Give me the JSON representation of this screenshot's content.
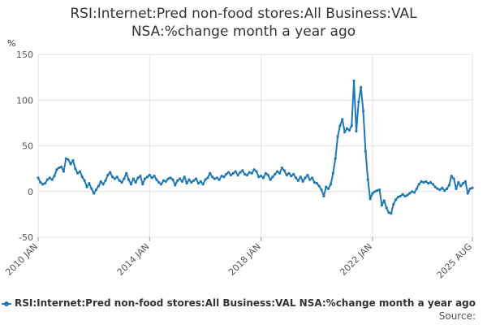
{
  "chart_data": {
    "type": "line",
    "title_line1": "RSI:Internet:Pred non-food stores:All Business:VAL",
    "title_line2": "NSA:%change month a year ago",
    "ylabel": "%",
    "ylim": [
      -50,
      150
    ],
    "yticks": [
      -50,
      0,
      50,
      100,
      150
    ],
    "xticks": [
      {
        "label": "2010 JAN",
        "t": 2010.0
      },
      {
        "label": "2014 JAN",
        "t": 2014.0
      },
      {
        "label": "2018 JAN",
        "t": 2018.0
      },
      {
        "label": "2022 JAN",
        "t": 2022.0
      },
      {
        "label": "2025 AUG",
        "t": 2025.583
      }
    ],
    "xlim": [
      2010.0,
      2025.583
    ],
    "grid": true,
    "legend_position": "bottom",
    "series": [
      {
        "name": "RSI:Internet:Pred non-food stores:All Business:VAL NSA:%change month a year ago",
        "color": "#1f78b4",
        "points": [
          [
            2010.0,
            15
          ],
          [
            2010.083,
            10
          ],
          [
            2010.167,
            8
          ],
          [
            2010.25,
            9
          ],
          [
            2010.333,
            13
          ],
          [
            2010.417,
            15
          ],
          [
            2010.5,
            13
          ],
          [
            2010.583,
            17
          ],
          [
            2010.667,
            24
          ],
          [
            2010.75,
            26
          ],
          [
            2010.833,
            27
          ],
          [
            2010.917,
            22
          ],
          [
            2011.0,
            36
          ],
          [
            2011.083,
            35
          ],
          [
            2011.167,
            30
          ],
          [
            2011.25,
            34
          ],
          [
            2011.333,
            25
          ],
          [
            2011.417,
            20
          ],
          [
            2011.5,
            22
          ],
          [
            2011.583,
            16
          ],
          [
            2011.667,
            12
          ],
          [
            2011.75,
            5
          ],
          [
            2011.833,
            9
          ],
          [
            2011.917,
            3
          ],
          [
            2012.0,
            -2
          ],
          [
            2012.083,
            2
          ],
          [
            2012.167,
            6
          ],
          [
            2012.25,
            11
          ],
          [
            2012.333,
            8
          ],
          [
            2012.417,
            12
          ],
          [
            2012.5,
            18
          ],
          [
            2012.583,
            21
          ],
          [
            2012.667,
            16
          ],
          [
            2012.75,
            14
          ],
          [
            2012.833,
            16
          ],
          [
            2012.917,
            12
          ],
          [
            2013.0,
            10
          ],
          [
            2013.083,
            14
          ],
          [
            2013.167,
            20
          ],
          [
            2013.25,
            13
          ],
          [
            2013.333,
            8
          ],
          [
            2013.417,
            14
          ],
          [
            2013.5,
            10
          ],
          [
            2013.583,
            15
          ],
          [
            2013.667,
            17
          ],
          [
            2013.75,
            8
          ],
          [
            2013.833,
            14
          ],
          [
            2013.917,
            16
          ],
          [
            2014.0,
            18
          ],
          [
            2014.083,
            15
          ],
          [
            2014.167,
            17
          ],
          [
            2014.25,
            13
          ],
          [
            2014.333,
            10
          ],
          [
            2014.417,
            8
          ],
          [
            2014.5,
            12
          ],
          [
            2014.583,
            11
          ],
          [
            2014.667,
            14
          ],
          [
            2014.75,
            15
          ],
          [
            2014.833,
            13
          ],
          [
            2014.917,
            7
          ],
          [
            2015.0,
            12
          ],
          [
            2015.083,
            14
          ],
          [
            2015.167,
            11
          ],
          [
            2015.25,
            16
          ],
          [
            2015.333,
            9
          ],
          [
            2015.417,
            13
          ],
          [
            2015.5,
            10
          ],
          [
            2015.583,
            12
          ],
          [
            2015.667,
            14
          ],
          [
            2015.75,
            9
          ],
          [
            2015.833,
            11
          ],
          [
            2015.917,
            8
          ],
          [
            2016.0,
            13
          ],
          [
            2016.083,
            15
          ],
          [
            2016.167,
            20
          ],
          [
            2016.25,
            16
          ],
          [
            2016.333,
            14
          ],
          [
            2016.417,
            15
          ],
          [
            2016.5,
            13
          ],
          [
            2016.583,
            17
          ],
          [
            2016.667,
            16
          ],
          [
            2016.75,
            19
          ],
          [
            2016.833,
            21
          ],
          [
            2016.917,
            18
          ],
          [
            2017.0,
            20
          ],
          [
            2017.083,
            22
          ],
          [
            2017.167,
            18
          ],
          [
            2017.25,
            21
          ],
          [
            2017.333,
            23
          ],
          [
            2017.417,
            19
          ],
          [
            2017.5,
            18
          ],
          [
            2017.583,
            21
          ],
          [
            2017.667,
            20
          ],
          [
            2017.75,
            24
          ],
          [
            2017.833,
            22
          ],
          [
            2017.917,
            16
          ],
          [
            2018.0,
            17
          ],
          [
            2018.083,
            15
          ],
          [
            2018.167,
            20
          ],
          [
            2018.25,
            18
          ],
          [
            2018.333,
            13
          ],
          [
            2018.417,
            16
          ],
          [
            2018.5,
            19
          ],
          [
            2018.583,
            22
          ],
          [
            2018.667,
            20
          ],
          [
            2018.75,
            26
          ],
          [
            2018.833,
            23
          ],
          [
            2018.917,
            18
          ],
          [
            2019.0,
            20
          ],
          [
            2019.083,
            17
          ],
          [
            2019.167,
            19
          ],
          [
            2019.25,
            15
          ],
          [
            2019.333,
            12
          ],
          [
            2019.417,
            16
          ],
          [
            2019.5,
            11
          ],
          [
            2019.583,
            15
          ],
          [
            2019.667,
            18
          ],
          [
            2019.75,
            13
          ],
          [
            2019.833,
            15
          ],
          [
            2019.917,
            10
          ],
          [
            2020.0,
            9
          ],
          [
            2020.083,
            6
          ],
          [
            2020.167,
            2
          ],
          [
            2020.25,
            -5
          ],
          [
            2020.333,
            5
          ],
          [
            2020.417,
            3
          ],
          [
            2020.5,
            8
          ],
          [
            2020.583,
            20
          ],
          [
            2020.667,
            36
          ],
          [
            2020.75,
            60
          ],
          [
            2020.833,
            72
          ],
          [
            2020.917,
            79
          ],
          [
            2021.0,
            65
          ],
          [
            2021.083,
            69
          ],
          [
            2021.167,
            67
          ],
          [
            2021.25,
            72
          ],
          [
            2021.333,
            121
          ],
          [
            2021.417,
            66
          ],
          [
            2021.5,
            98
          ],
          [
            2021.583,
            114
          ],
          [
            2021.667,
            88
          ],
          [
            2021.75,
            44
          ],
          [
            2021.833,
            13
          ],
          [
            2021.917,
            -8
          ],
          [
            2022.0,
            -2
          ],
          [
            2022.083,
            0
          ],
          [
            2022.167,
            1
          ],
          [
            2022.25,
            2
          ],
          [
            2022.333,
            -15
          ],
          [
            2022.417,
            -10
          ],
          [
            2022.5,
            -18
          ],
          [
            2022.583,
            -23
          ],
          [
            2022.667,
            -24
          ],
          [
            2022.75,
            -14
          ],
          [
            2022.833,
            -9
          ],
          [
            2022.917,
            -6
          ],
          [
            2023.0,
            -5
          ],
          [
            2023.083,
            -3
          ],
          [
            2023.167,
            -5
          ],
          [
            2023.25,
            -4
          ],
          [
            2023.333,
            -2
          ],
          [
            2023.417,
            0
          ],
          [
            2023.5,
            -1
          ],
          [
            2023.583,
            3
          ],
          [
            2023.667,
            8
          ],
          [
            2023.75,
            11
          ],
          [
            2023.833,
            10
          ],
          [
            2023.917,
            11
          ],
          [
            2024.0,
            9
          ],
          [
            2024.083,
            10
          ],
          [
            2024.167,
            8
          ],
          [
            2024.25,
            5
          ],
          [
            2024.333,
            3
          ],
          [
            2024.417,
            2
          ],
          [
            2024.5,
            4
          ],
          [
            2024.583,
            1
          ],
          [
            2024.667,
            3
          ],
          [
            2024.75,
            7
          ],
          [
            2024.833,
            17
          ],
          [
            2024.917,
            14
          ],
          [
            2025.0,
            3
          ],
          [
            2025.083,
            10
          ],
          [
            2025.167,
            6
          ],
          [
            2025.25,
            9
          ],
          [
            2025.333,
            11
          ],
          [
            2025.417,
            -2
          ],
          [
            2025.5,
            3
          ],
          [
            2025.583,
            4
          ]
        ]
      }
    ]
  },
  "legend": {
    "label": "RSI:Internet:Pred non-food stores:All Business:VAL NSA:%change month a year ago"
  },
  "footer": {
    "source_label": "Source:"
  }
}
